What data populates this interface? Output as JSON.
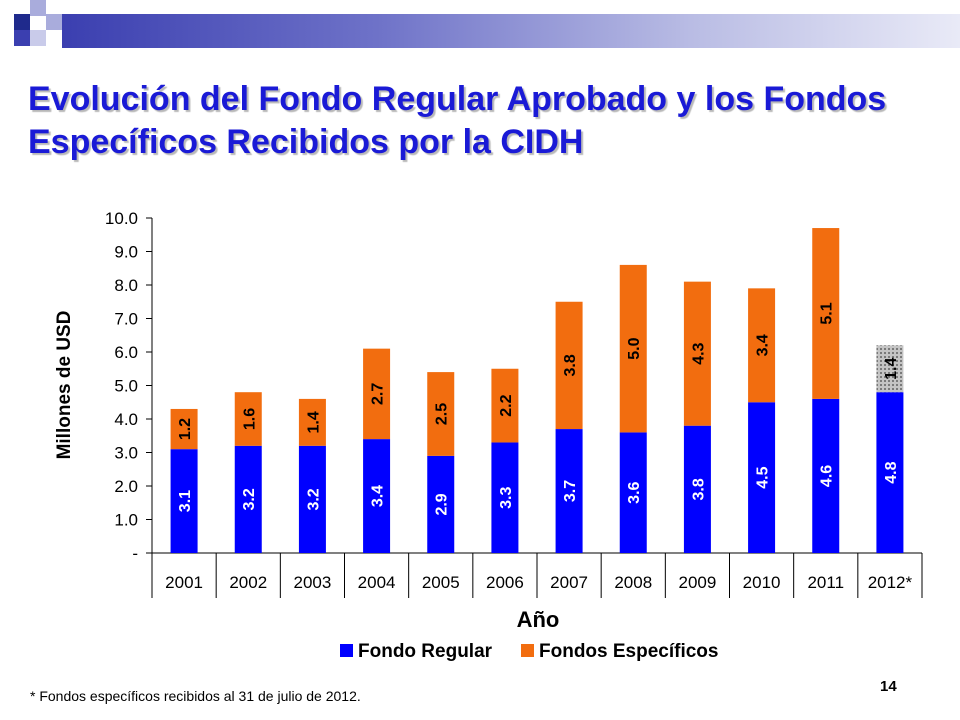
{
  "slide": {
    "title": "Evolución del Fondo Regular Aprobado y los Fondos Específicos Recibidos por la CIDH",
    "footnote": "* Fondos específicos recibidos al 31 de julio de 2012.",
    "page_number": "14",
    "colors": {
      "title": "#1a1ad6",
      "band_dark": "#3b3fb0",
      "deco_navy": "#1f2a8c",
      "deco_light": "#a9acdc"
    }
  },
  "chart_data": {
    "type": "bar",
    "stacked": true,
    "categories": [
      "2001",
      "2002",
      "2003",
      "2004",
      "2005",
      "2006",
      "2007",
      "2008",
      "2009",
      "2010",
      "2011",
      "2012*"
    ],
    "series": [
      {
        "name": "Fondo Regular",
        "color": "#0000ff",
        "values": [
          3.1,
          3.2,
          3.2,
          3.4,
          2.9,
          3.3,
          3.7,
          3.6,
          3.8,
          4.5,
          4.6,
          4.8
        ],
        "labels": [
          "3.1",
          "3.2",
          "3.2",
          "3.4",
          "2.9",
          "3.3",
          "3.7",
          "3.6",
          "3.8",
          "4.5",
          "4.6",
          "4.8"
        ]
      },
      {
        "name": "Fondos Específicos",
        "color": "#f26d0f",
        "values": [
          1.2,
          1.6,
          1.4,
          2.7,
          2.5,
          2.2,
          3.8,
          5.0,
          4.3,
          3.4,
          5.1,
          1.4
        ],
        "labels": [
          "1.2",
          "1.6",
          "1.4",
          "2.7",
          "2.5",
          "2.2",
          "3.8",
          "5.0",
          "4.3",
          "3.4",
          "5.1",
          "1.4"
        ],
        "partial_year_pattern_index": 11
      }
    ],
    "xlabel": "Año",
    "ylabel": "Millones de USD",
    "ylim": [
      0,
      10
    ],
    "y_ticks": [
      "-",
      "1.0",
      "2.0",
      "3.0",
      "4.0",
      "5.0",
      "6.0",
      "7.0",
      "8.0",
      "9.0",
      "10.0"
    ],
    "grid": false,
    "legend_position": "bottom"
  }
}
